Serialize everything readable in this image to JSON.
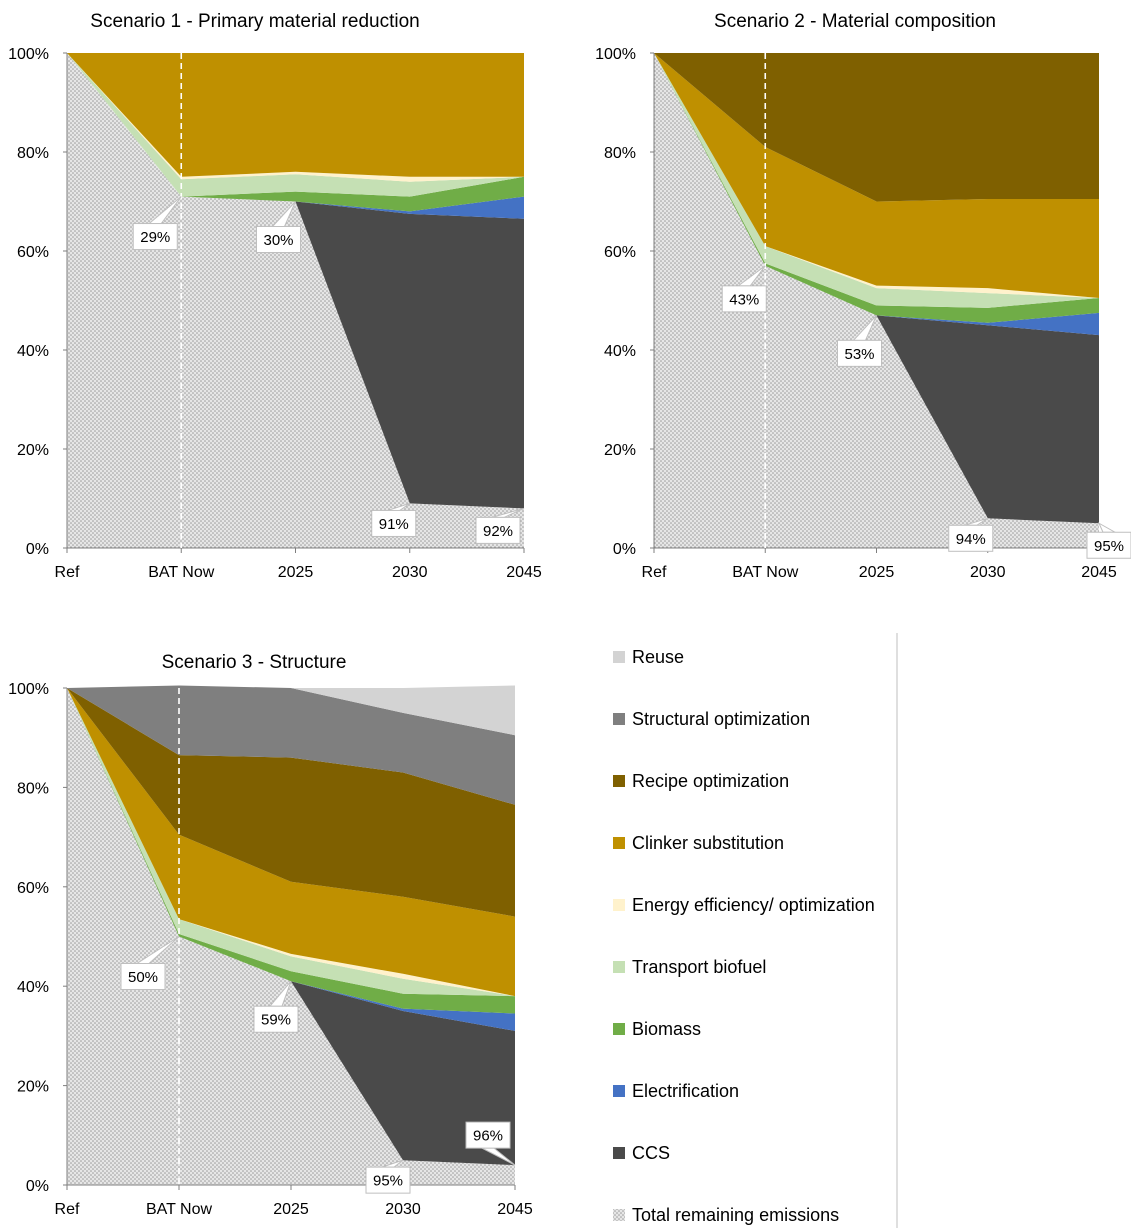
{
  "colors": {
    "reuse": "#d3d3d3",
    "structural": "#7f7f7f",
    "recipe": "#7f6000",
    "clinker": "#bf9000",
    "energy": "#fff2cc",
    "transport": "#c5e0b4",
    "biomass": "#70ad47",
    "electrification": "#4472c4",
    "ccs": "#4a4a4a",
    "remaining": "#cfcfcf"
  },
  "legend": [
    {
      "key": "reuse",
      "label": "Reuse",
      "color": "#d3d3d3"
    },
    {
      "key": "structural",
      "label": "Structural optimization",
      "color": "#7f7f7f"
    },
    {
      "key": "recipe",
      "label": "Recipe optimization",
      "color": "#7f6000"
    },
    {
      "key": "clinker",
      "label": "Clinker substitution",
      "color": "#bf9000"
    },
    {
      "key": "energy",
      "label": "Energy efficiency/ optimization",
      "color": "#fff2cc"
    },
    {
      "key": "transport",
      "label": "Transport biofuel",
      "color": "#c5e0b4"
    },
    {
      "key": "biomass",
      "label": "Biomass",
      "color": "#70ad47"
    },
    {
      "key": "electrification",
      "label": "Electrification",
      "color": "#4472c4"
    },
    {
      "key": "ccs",
      "label": "CCS",
      "color": "#4a4a4a"
    },
    {
      "key": "remaining",
      "label": "Total remaining emissions",
      "color": "#cfcfcf"
    }
  ],
  "chart_data": [
    {
      "type": "area",
      "title": "Scenario 1 - Primary material reduction",
      "categories": [
        "Ref",
        "BAT Now",
        "2025",
        "2030",
        "2045"
      ],
      "ylim": [
        0,
        100
      ],
      "yticks": [
        "0%",
        "20%",
        "40%",
        "60%",
        "80%",
        "100%"
      ],
      "marker_category": "BAT Now",
      "series": [
        {
          "key": "remaining",
          "values": [
            100,
            71,
            70,
            9,
            8
          ]
        },
        {
          "key": "ccs",
          "values": [
            0,
            0,
            0,
            58.5,
            58.5
          ]
        },
        {
          "key": "electrification",
          "values": [
            0,
            0,
            0,
            0.5,
            4.5
          ]
        },
        {
          "key": "biomass",
          "values": [
            0,
            0,
            2,
            3,
            4
          ]
        },
        {
          "key": "transport",
          "values": [
            0,
            3.5,
            3.5,
            3,
            0
          ]
        },
        {
          "key": "energy",
          "values": [
            0,
            0.5,
            0.5,
            1,
            0
          ]
        },
        {
          "key": "clinker",
          "values": [
            0,
            25,
            24,
            25,
            25
          ]
        }
      ],
      "callouts": [
        {
          "category": "BAT Now",
          "value": 71,
          "label": "29%"
        },
        {
          "category": "2025",
          "value": 70,
          "label": "30%"
        },
        {
          "category": "2030",
          "value": 9,
          "label": "91%"
        },
        {
          "category": "2045",
          "value": 8,
          "label": "92%"
        }
      ]
    },
    {
      "type": "area",
      "title": "Scenario 2 - Material composition",
      "categories": [
        "Ref",
        "BAT Now",
        "2025",
        "2030",
        "2045"
      ],
      "ylim": [
        0,
        100
      ],
      "yticks": [
        "0%",
        "20%",
        "40%",
        "60%",
        "80%",
        "100%"
      ],
      "marker_category": "BAT Now",
      "series": [
        {
          "key": "remaining",
          "values": [
            100,
            57,
            47,
            6,
            5
          ]
        },
        {
          "key": "ccs",
          "values": [
            0,
            0,
            0,
            39,
            38
          ]
        },
        {
          "key": "electrification",
          "values": [
            0,
            0,
            0,
            0.5,
            4.5
          ]
        },
        {
          "key": "biomass",
          "values": [
            0,
            0.5,
            2,
            3,
            3
          ]
        },
        {
          "key": "transport",
          "values": [
            0,
            3.5,
            3.5,
            3,
            0
          ]
        },
        {
          "key": "energy",
          "values": [
            0,
            0,
            0.5,
            1,
            0
          ]
        },
        {
          "key": "clinker",
          "values": [
            0,
            20,
            17,
            18,
            20
          ]
        },
        {
          "key": "recipe",
          "values": [
            0,
            19,
            30,
            29.5,
            29.5
          ]
        }
      ],
      "callouts": [
        {
          "category": "BAT Now",
          "value": 57,
          "label": "43%"
        },
        {
          "category": "2025",
          "value": 47,
          "label": "53%"
        },
        {
          "category": "2030",
          "value": 6,
          "label": "94%"
        },
        {
          "category": "2045",
          "value": 5,
          "label": "95%"
        }
      ]
    },
    {
      "type": "area",
      "title": "Scenario 3 - Structure",
      "categories": [
        "Ref",
        "BAT Now",
        "2025",
        "2030",
        "2045"
      ],
      "ylim": [
        0,
        100
      ],
      "yticks": [
        "0%",
        "20%",
        "40%",
        "60%",
        "80%",
        "100%"
      ],
      "marker_category": "BAT Now",
      "series": [
        {
          "key": "remaining",
          "values": [
            100,
            50,
            41,
            5,
            4
          ]
        },
        {
          "key": "ccs",
          "values": [
            0,
            0,
            0,
            30,
            27
          ]
        },
        {
          "key": "electrification",
          "values": [
            0,
            0,
            0,
            0.5,
            3.5
          ]
        },
        {
          "key": "biomass",
          "values": [
            0,
            0.5,
            2,
            3,
            3.5
          ]
        },
        {
          "key": "transport",
          "values": [
            0,
            3,
            3,
            3,
            0
          ]
        },
        {
          "key": "energy",
          "values": [
            0,
            0,
            0.5,
            1,
            0
          ]
        },
        {
          "key": "clinker",
          "values": [
            0,
            17,
            14.5,
            15.5,
            16
          ]
        },
        {
          "key": "recipe",
          "values": [
            0,
            16,
            25,
            25,
            22.5
          ]
        },
        {
          "key": "structural",
          "values": [
            0,
            14,
            14,
            12,
            14
          ]
        },
        {
          "key": "reuse",
          "values": [
            0,
            0,
            0,
            5,
            10
          ]
        }
      ],
      "callouts": [
        {
          "category": "BAT Now",
          "value": 50,
          "label": "50%"
        },
        {
          "category": "2025",
          "value": 41,
          "label": "59%"
        },
        {
          "category": "2030",
          "value": 5,
          "label": "95%"
        },
        {
          "category": "2045",
          "value": 4,
          "label": "96%"
        }
      ]
    }
  ]
}
